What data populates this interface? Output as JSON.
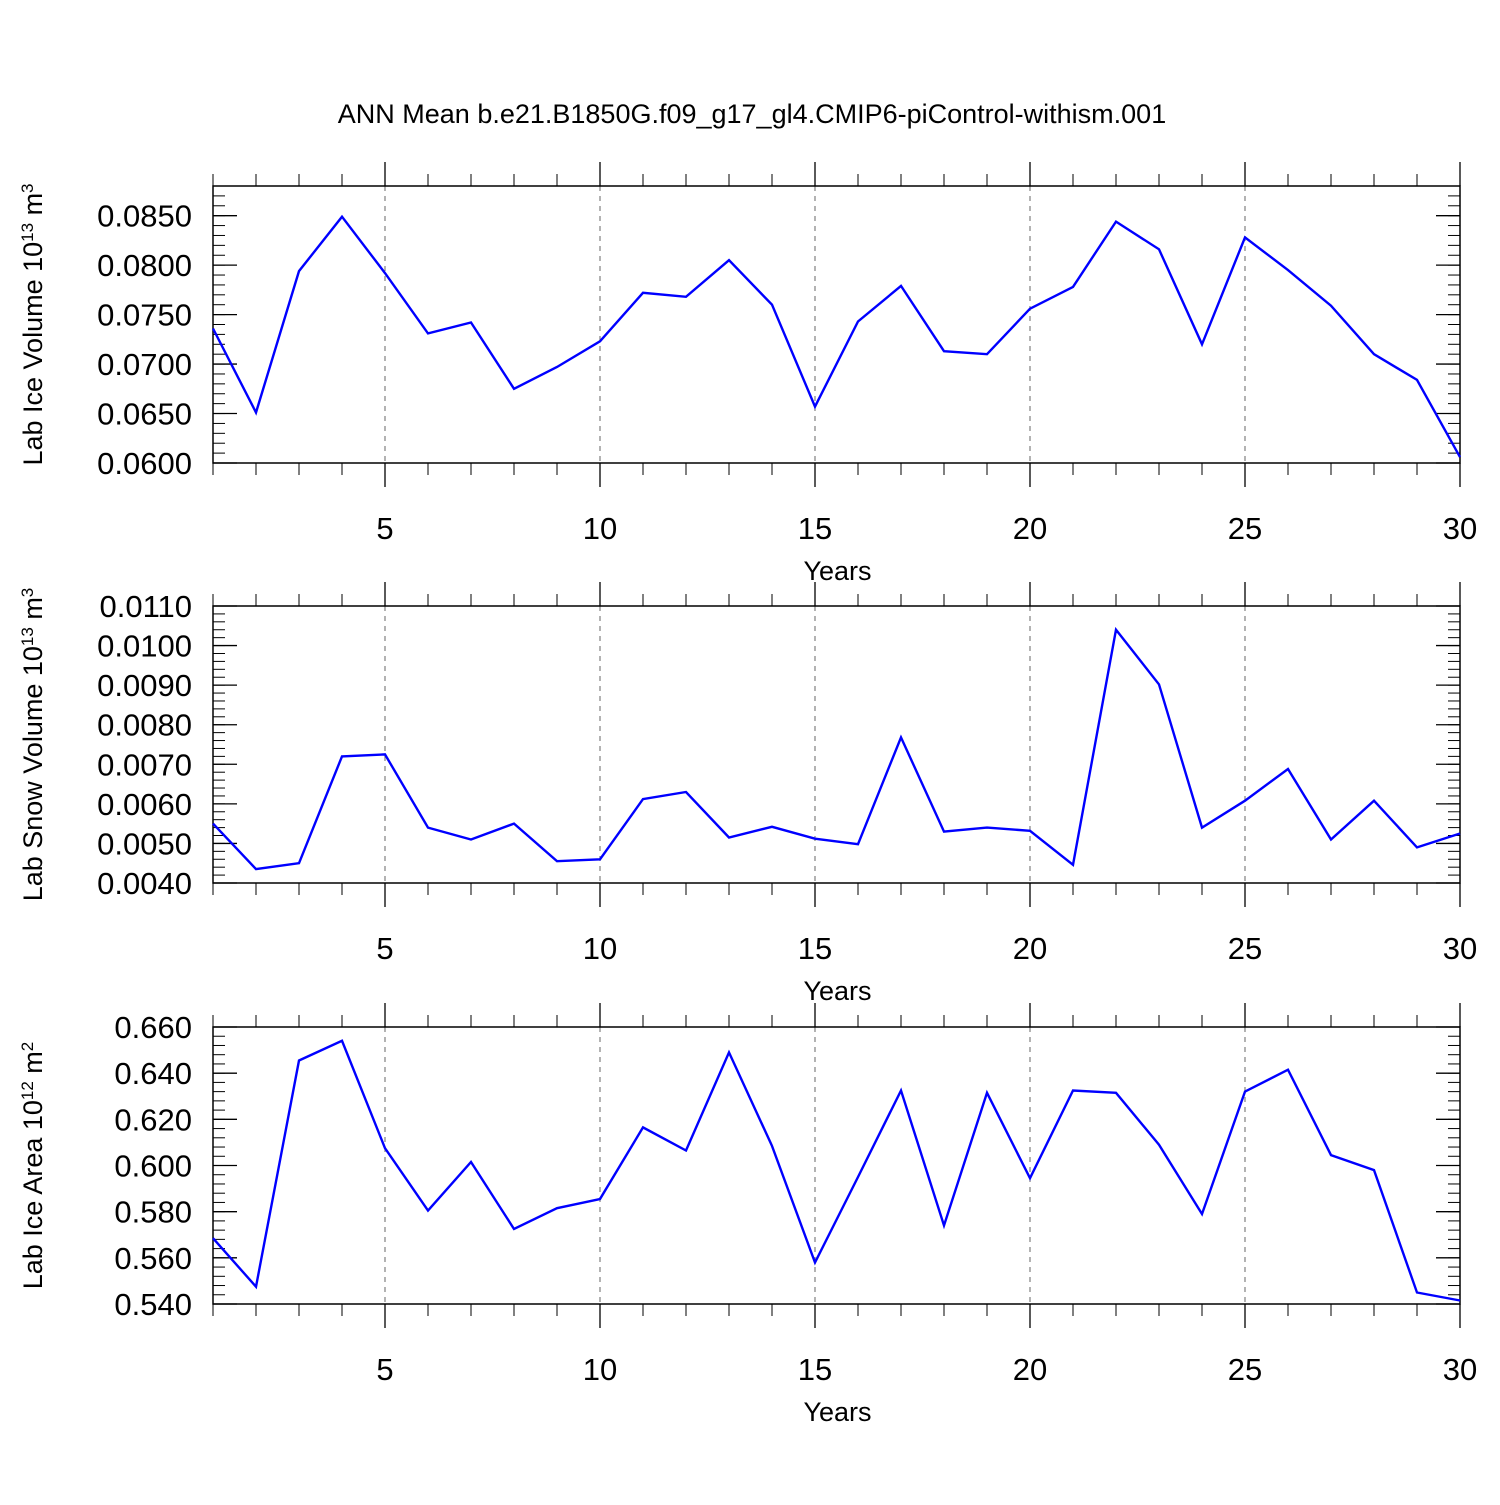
{
  "title": "ANN Mean b.e21.B1850G.f09_g17_gl4.CMIP6-piControl-withism.001",
  "colors": {
    "series": "#0000ff",
    "axis": "#000000",
    "grid": "#808080"
  },
  "chart_data": [
    {
      "type": "line",
      "xlabel": "Years",
      "ylabel": {
        "base": "Lab Ice Volume 10",
        "exponent": "13",
        "unit": " m",
        "unit_exponent": "3"
      },
      "xlim": [
        1,
        30
      ],
      "ylim": [
        0.06,
        0.088
      ],
      "grid": "vertical-dashed",
      "x_ticks": [
        5,
        10,
        15,
        20,
        25,
        30
      ],
      "x_tick_labels": [
        "5",
        "10",
        "15",
        "20",
        "25",
        "30"
      ],
      "y_ticks": [
        0.06,
        0.065,
        0.07,
        0.075,
        0.08,
        0.085
      ],
      "y_tick_labels": [
        "0.0600",
        "0.0650",
        "0.0700",
        "0.0750",
        "0.0800",
        "0.0850"
      ],
      "x": [
        1,
        2,
        3,
        4,
        5,
        6,
        7,
        8,
        9,
        10,
        11,
        12,
        13,
        14,
        15,
        16,
        17,
        18,
        19,
        20,
        21,
        22,
        23,
        24,
        25,
        26,
        27,
        28,
        29,
        30
      ],
      "values": [
        0.0736,
        0.0651,
        0.0794,
        0.0849,
        0.0792,
        0.0731,
        0.0742,
        0.0675,
        0.0697,
        0.0723,
        0.0772,
        0.0768,
        0.0805,
        0.076,
        0.0657,
        0.0743,
        0.0779,
        0.0713,
        0.071,
        0.0756,
        0.0778,
        0.0844,
        0.0816,
        0.072,
        0.0828,
        0.0795,
        0.0759,
        0.071,
        0.0684,
        0.0606
      ]
    },
    {
      "type": "line",
      "xlabel": "Years",
      "ylabel": {
        "base": "Lab Snow Volume 10",
        "exponent": "13",
        "unit": " m",
        "unit_exponent": "3"
      },
      "xlim": [
        1,
        30
      ],
      "ylim": [
        0.004,
        0.011
      ],
      "grid": "vertical-dashed",
      "x_ticks": [
        5,
        10,
        15,
        20,
        25,
        30
      ],
      "x_tick_labels": [
        "5",
        "10",
        "15",
        "20",
        "25",
        "30"
      ],
      "y_ticks": [
        0.004,
        0.005,
        0.006,
        0.007,
        0.008,
        0.009,
        0.01,
        0.011
      ],
      "y_tick_labels": [
        "0.0040",
        "0.0050",
        "0.0060",
        "0.0070",
        "0.0080",
        "0.0090",
        "0.0100",
        "0.0110"
      ],
      "x": [
        1,
        2,
        3,
        4,
        5,
        6,
        7,
        8,
        9,
        10,
        11,
        12,
        13,
        14,
        15,
        16,
        17,
        18,
        19,
        20,
        21,
        22,
        23,
        24,
        25,
        26,
        27,
        28,
        29,
        30
      ],
      "values": [
        0.0055,
        0.00435,
        0.0045,
        0.0072,
        0.00725,
        0.0054,
        0.0051,
        0.0055,
        0.00455,
        0.0046,
        0.00612,
        0.0063,
        0.00515,
        0.00542,
        0.00512,
        0.00498,
        0.00768,
        0.0053,
        0.0054,
        0.00532,
        0.00446,
        0.0104,
        0.00902,
        0.0054,
        0.00608,
        0.00688,
        0.0051,
        0.00608,
        0.0049,
        0.00525
      ]
    },
    {
      "type": "line",
      "xlabel": "Years",
      "ylabel": {
        "base": "Lab Ice Area 10",
        "exponent": "12",
        "unit": " m",
        "unit_exponent": "2"
      },
      "xlim": [
        1,
        30
      ],
      "ylim": [
        0.54,
        0.66
      ],
      "grid": "vertical-dashed",
      "x_ticks": [
        5,
        10,
        15,
        20,
        25,
        30
      ],
      "x_tick_labels": [
        "5",
        "10",
        "15",
        "20",
        "25",
        "30"
      ],
      "y_ticks": [
        0.54,
        0.56,
        0.58,
        0.6,
        0.62,
        0.64,
        0.66
      ],
      "y_tick_labels": [
        "0.540",
        "0.560",
        "0.580",
        "0.600",
        "0.620",
        "0.640",
        "0.660"
      ],
      "x": [
        1,
        2,
        3,
        4,
        5,
        6,
        7,
        8,
        9,
        10,
        11,
        12,
        13,
        14,
        15,
        16,
        17,
        18,
        19,
        20,
        21,
        22,
        23,
        24,
        25,
        26,
        27,
        28,
        29,
        30
      ],
      "values": [
        0.5685,
        0.5475,
        0.6455,
        0.654,
        0.6075,
        0.5805,
        0.6015,
        0.5725,
        0.5815,
        0.5855,
        0.6165,
        0.6065,
        0.649,
        0.6085,
        0.558,
        0.595,
        0.6325,
        0.574,
        0.6315,
        0.5945,
        0.6325,
        0.6315,
        0.609,
        0.579,
        0.632,
        0.6415,
        0.6045,
        0.598,
        0.545,
        0.5415
      ]
    }
  ]
}
